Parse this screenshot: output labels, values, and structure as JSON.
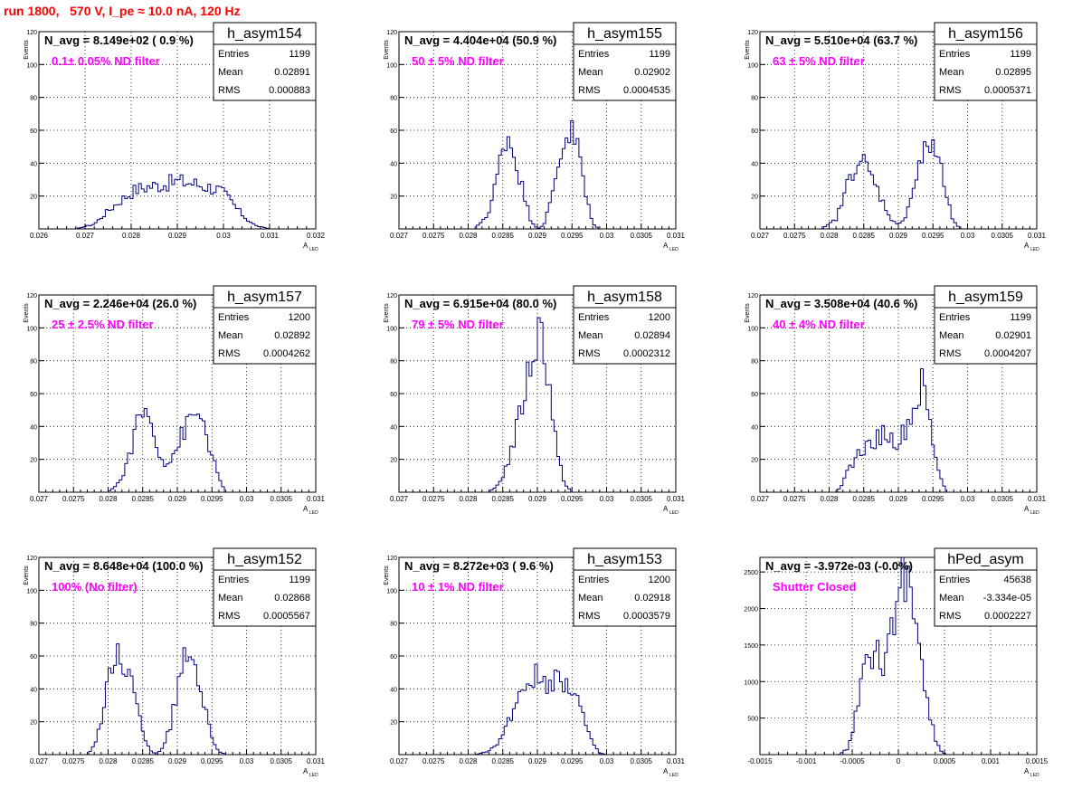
{
  "page_title": "run 1800,   570 V, I_pe ≈ 10.0 nA, 120 Hz",
  "colors": {
    "histogram": "#000080",
    "annotation": "#ff00ff",
    "title": "#ff0000",
    "frame": "#000000",
    "grid": "#000000"
  },
  "chart_data": [
    {
      "type": "histogram",
      "name": "h_asym154",
      "navg": "N_avg = 8.149e+02 ( 0.9 %)",
      "note": "0.1± 0.05% ND filter",
      "stats": {
        "entries": "1199",
        "mean": "0.02891",
        "rms": "0.000883"
      },
      "xlabel": "A",
      "xlabel_sub": "LED",
      "ylabel": "Events",
      "xlim": [
        0.026,
        0.032
      ],
      "ylim": [
        0,
        120
      ],
      "xticks": [
        "0.026",
        "0.027",
        "0.028",
        "0.029",
        "0.03",
        "0.031",
        "0.032"
      ],
      "yticks": [
        "20",
        "40",
        "60",
        "80",
        "100",
        "120"
      ],
      "grid": true,
      "legend": "top-right",
      "curve": [
        [
          0.0268,
          0
        ],
        [
          0.0272,
          3
        ],
        [
          0.0275,
          11
        ],
        [
          0.0278,
          18
        ],
        [
          0.0281,
          24
        ],
        [
          0.0284,
          26
        ],
        [
          0.0287,
          27
        ],
        [
          0.029,
          29
        ],
        [
          0.0293,
          28
        ],
        [
          0.0296,
          26
        ],
        [
          0.0299,
          24
        ],
        [
          0.0301,
          19
        ],
        [
          0.0303,
          12
        ],
        [
          0.0305,
          6
        ],
        [
          0.0307,
          2
        ],
        [
          0.031,
          0
        ]
      ]
    },
    {
      "type": "histogram",
      "name": "h_asym155",
      "navg": "N_avg = 4.404e+04 (50.9 %)",
      "note": "50 ± 5% ND filter",
      "stats": {
        "entries": "1199",
        "mean": "0.02902",
        "rms": "0.0004535"
      },
      "xlabel": "A",
      "xlabel_sub": "LED",
      "ylabel": "Events",
      "xlim": [
        0.027,
        0.031
      ],
      "ylim": [
        0,
        120
      ],
      "xticks": [
        "0.027",
        "0.0275",
        "0.028",
        "0.0285",
        "0.029",
        "0.0295",
        "0.03",
        "0.0305",
        "0.031"
      ],
      "yticks": [
        "20",
        "40",
        "60",
        "80",
        "100",
        "120"
      ],
      "grid": true,
      "legend": "top-right",
      "curve": [
        [
          0.0281,
          0
        ],
        [
          0.0283,
          10
        ],
        [
          0.0284,
          28
        ],
        [
          0.0285,
          50
        ],
        [
          0.02855,
          58
        ],
        [
          0.0286,
          55
        ],
        [
          0.0287,
          40
        ],
        [
          0.0288,
          22
        ],
        [
          0.0289,
          6
        ],
        [
          0.029,
          0
        ],
        [
          0.0291,
          3
        ],
        [
          0.0292,
          18
        ],
        [
          0.0293,
          40
        ],
        [
          0.0294,
          56
        ],
        [
          0.02948,
          60
        ],
        [
          0.0296,
          48
        ],
        [
          0.0297,
          20
        ],
        [
          0.0298,
          3
        ],
        [
          0.0299,
          0
        ]
      ]
    },
    {
      "type": "histogram",
      "name": "h_asym156",
      "navg": "N_avg = 5.510e+04 (63.7 %)",
      "note": "63 ± 5% ND filter",
      "stats": {
        "entries": "1199",
        "mean": "0.02895",
        "rms": "0.0005371"
      },
      "xlabel": "A",
      "xlabel_sub": "LED",
      "ylabel": "Events",
      "xlim": [
        0.027,
        0.031
      ],
      "ylim": [
        0,
        120
      ],
      "xticks": [
        "0.027",
        "0.0275",
        "0.028",
        "0.0285",
        "0.029",
        "0.0295",
        "0.03",
        "0.0305",
        "0.031"
      ],
      "yticks": [
        "20",
        "40",
        "60",
        "80",
        "100",
        "120"
      ],
      "grid": true,
      "legend": "top-right",
      "curve": [
        [
          0.0279,
          0
        ],
        [
          0.0281,
          6
        ],
        [
          0.0282,
          18
        ],
        [
          0.0283,
          32
        ],
        [
          0.0284,
          42
        ],
        [
          0.0285,
          40
        ],
        [
          0.0286,
          32
        ],
        [
          0.0287,
          24
        ],
        [
          0.0288,
          14
        ],
        [
          0.0289,
          6
        ],
        [
          0.029,
          2
        ],
        [
          0.0291,
          8
        ],
        [
          0.0292,
          22
        ],
        [
          0.0293,
          38
        ],
        [
          0.0294,
          48
        ],
        [
          0.0295,
          52
        ],
        [
          0.0296,
          40
        ],
        [
          0.0297,
          18
        ],
        [
          0.0298,
          4
        ],
        [
          0.0299,
          0
        ]
      ]
    },
    {
      "type": "histogram",
      "name": "h_asym157",
      "navg": "N_avg = 2.246e+04 (26.0 %)",
      "note": "25 ± 2.5% ND filter",
      "stats": {
        "entries": "1200",
        "mean": "0.02892",
        "rms": "0.0004262"
      },
      "xlabel": "A",
      "xlabel_sub": "LED",
      "ylabel": "Events",
      "xlim": [
        0.027,
        0.031
      ],
      "ylim": [
        0,
        120
      ],
      "xticks": [
        "0.027",
        "0.0275",
        "0.028",
        "0.0285",
        "0.029",
        "0.0295",
        "0.03",
        "0.0305",
        "0.031"
      ],
      "yticks": [
        "20",
        "40",
        "60",
        "80",
        "100",
        "120"
      ],
      "grid": true,
      "legend": "top-right",
      "curve": [
        [
          0.028,
          0
        ],
        [
          0.0282,
          8
        ],
        [
          0.0283,
          22
        ],
        [
          0.0284,
          38
        ],
        [
          0.0285,
          50
        ],
        [
          0.0286,
          44
        ],
        [
          0.0287,
          30
        ],
        [
          0.0288,
          18
        ],
        [
          0.0289,
          20
        ],
        [
          0.029,
          28
        ],
        [
          0.0291,
          38
        ],
        [
          0.0292,
          44
        ],
        [
          0.0293,
          48
        ],
        [
          0.0294,
          40
        ],
        [
          0.0295,
          22
        ],
        [
          0.0296,
          8
        ],
        [
          0.0297,
          0
        ]
      ]
    },
    {
      "type": "histogram",
      "name": "h_asym158",
      "navg": "N_avg = 6.915e+04 (80.0 %)",
      "note": "79 ± 5% ND filter",
      "stats": {
        "entries": "1200",
        "mean": "0.02894",
        "rms": "0.0002312"
      },
      "xlabel": "A",
      "xlabel_sub": "LED",
      "ylabel": "Events",
      "xlim": [
        0.027,
        0.031
      ],
      "ylim": [
        0,
        120
      ],
      "xticks": [
        "0.027",
        "0.0275",
        "0.028",
        "0.0285",
        "0.029",
        "0.0295",
        "0.03",
        "0.0305",
        "0.031"
      ],
      "yticks": [
        "20",
        "40",
        "60",
        "80",
        "100",
        "120"
      ],
      "grid": true,
      "legend": "top-right",
      "curve": [
        [
          0.0283,
          0
        ],
        [
          0.0284,
          3
        ],
        [
          0.0285,
          10
        ],
        [
          0.0286,
          22
        ],
        [
          0.0287,
          38
        ],
        [
          0.0288,
          58
        ],
        [
          0.0289,
          78
        ],
        [
          0.029,
          96
        ],
        [
          0.02905,
          100
        ],
        [
          0.0291,
          90
        ],
        [
          0.0292,
          55
        ],
        [
          0.0293,
          20
        ],
        [
          0.0294,
          5
        ],
        [
          0.0295,
          0
        ]
      ]
    },
    {
      "type": "histogram",
      "name": "h_asym159",
      "navg": "N_avg = 3.508e+04 (40.6 %)",
      "note": "40 ± 4% ND filter",
      "stats": {
        "entries": "1199",
        "mean": "0.02901",
        "rms": "0.0004207"
      },
      "xlabel": "A",
      "xlabel_sub": "LED",
      "ylabel": "Events",
      "xlim": [
        0.027,
        0.031
      ],
      "ylim": [
        0,
        120
      ],
      "xticks": [
        "0.027",
        "0.0275",
        "0.028",
        "0.0285",
        "0.029",
        "0.0295",
        "0.03",
        "0.0305",
        "0.031"
      ],
      "yticks": [
        "20",
        "40",
        "60",
        "80",
        "100",
        "120"
      ],
      "grid": true,
      "legend": "top-right",
      "curve": [
        [
          0.0281,
          0
        ],
        [
          0.0282,
          6
        ],
        [
          0.0283,
          15
        ],
        [
          0.0284,
          22
        ],
        [
          0.0285,
          26
        ],
        [
          0.0286,
          30
        ],
        [
          0.0287,
          33
        ],
        [
          0.0288,
          36
        ],
        [
          0.0289,
          32
        ],
        [
          0.029,
          30
        ],
        [
          0.0291,
          38
        ],
        [
          0.0292,
          48
        ],
        [
          0.0293,
          58
        ],
        [
          0.02935,
          65
        ],
        [
          0.0294,
          55
        ],
        [
          0.0295,
          30
        ],
        [
          0.0296,
          10
        ],
        [
          0.0297,
          0
        ]
      ]
    },
    {
      "type": "histogram",
      "name": "h_asym152",
      "navg": "N_avg = 8.648e+04 (100.0 %)",
      "note": "100% (No filter)",
      "stats": {
        "entries": "1199",
        "mean": "0.02868",
        "rms": "0.0005567"
      },
      "xlabel": "A",
      "xlabel_sub": "LED",
      "ylabel": "Events",
      "xlim": [
        0.027,
        0.031
      ],
      "ylim": [
        0,
        120
      ],
      "xticks": [
        "0.027",
        "0.0275",
        "0.028",
        "0.0285",
        "0.029",
        "0.0295",
        "0.03",
        "0.0305",
        "0.031"
      ],
      "yticks": [
        "20",
        "40",
        "60",
        "80",
        "100",
        "120"
      ],
      "grid": true,
      "legend": "top-right",
      "curve": [
        [
          0.0277,
          0
        ],
        [
          0.0278,
          6
        ],
        [
          0.0279,
          20
        ],
        [
          0.028,
          42
        ],
        [
          0.0281,
          58
        ],
        [
          0.02815,
          62
        ],
        [
          0.0283,
          50
        ],
        [
          0.0284,
          32
        ],
        [
          0.0285,
          14
        ],
        [
          0.0286,
          3
        ],
        [
          0.0287,
          0
        ],
        [
          0.0288,
          5
        ],
        [
          0.0289,
          18
        ],
        [
          0.029,
          38
        ],
        [
          0.0291,
          56
        ],
        [
          0.02915,
          64
        ],
        [
          0.0293,
          50
        ],
        [
          0.0294,
          28
        ],
        [
          0.0295,
          10
        ],
        [
          0.0296,
          2
        ],
        [
          0.0297,
          0
        ]
      ]
    },
    {
      "type": "histogram",
      "name": "h_asym153",
      "navg": "N_avg = 8.272e+03 ( 9.6 %)",
      "note": "10 ± 1% ND filter",
      "stats": {
        "entries": "1200",
        "mean": "0.02918",
        "rms": "0.0003579"
      },
      "xlabel": "A",
      "xlabel_sub": "LED",
      "ylabel": "Events",
      "xlim": [
        0.027,
        0.031
      ],
      "ylim": [
        0,
        120
      ],
      "xticks": [
        "0.027",
        "0.0275",
        "0.028",
        "0.0285",
        "0.029",
        "0.0295",
        "0.03",
        "0.0305",
        "0.031"
      ],
      "yticks": [
        "20",
        "40",
        "60",
        "80",
        "100",
        "120"
      ],
      "grid": true,
      "legend": "top-right",
      "curve": [
        [
          0.0281,
          0
        ],
        [
          0.0283,
          2
        ],
        [
          0.0284,
          6
        ],
        [
          0.0285,
          12
        ],
        [
          0.0286,
          22
        ],
        [
          0.0287,
          34
        ],
        [
          0.0288,
          42
        ],
        [
          0.0289,
          46
        ],
        [
          0.029,
          47
        ],
        [
          0.0291,
          44
        ],
        [
          0.0292,
          46
        ],
        [
          0.0293,
          47
        ],
        [
          0.0294,
          46
        ],
        [
          0.0295,
          42
        ],
        [
          0.0296,
          32
        ],
        [
          0.0297,
          18
        ],
        [
          0.0298,
          6
        ],
        [
          0.0299,
          1
        ],
        [
          0.03,
          0
        ]
      ]
    },
    {
      "type": "histogram",
      "name": "hPed_asym",
      "navg": "N_avg = -3.972e-03 (-0.0%)",
      "note": "Shutter Closed",
      "stats": {
        "entries": "45638",
        "mean": "-3.334e-05",
        "rms": "0.0002227"
      },
      "xlabel": "A",
      "xlabel_sub": "LED",
      "ylabel": "",
      "xlim": [
        -0.0015,
        0.0015
      ],
      "ylim": [
        0,
        2700
      ],
      "xticks": [
        "-0.0015",
        "-0.001",
        "-0.0005",
        "0",
        "0.0005",
        "0.001",
        "0.0015"
      ],
      "yticks": [
        "500",
        "1000",
        "1500",
        "2000",
        "2500"
      ],
      "grid": true,
      "legend": "top-right",
      "curve": [
        [
          -0.00065,
          0
        ],
        [
          -0.00055,
          80
        ],
        [
          -0.00048,
          400
        ],
        [
          -0.00042,
          900
        ],
        [
          -0.00036,
          1250
        ],
        [
          -0.0003,
          1420
        ],
        [
          -0.00024,
          1380
        ],
        [
          -0.00018,
          1200
        ],
        [
          -0.00012,
          1300
        ],
        [
          -6e-05,
          1700
        ],
        [
          0,
          2300
        ],
        [
          4e-05,
          2600
        ],
        [
          0.0001,
          2420
        ],
        [
          0.00016,
          2050
        ],
        [
          0.00022,
          1600
        ],
        [
          0.00028,
          1050
        ],
        [
          0.00034,
          550
        ],
        [
          0.0004,
          200
        ],
        [
          0.00046,
          50
        ],
        [
          0.00052,
          0
        ]
      ]
    }
  ]
}
